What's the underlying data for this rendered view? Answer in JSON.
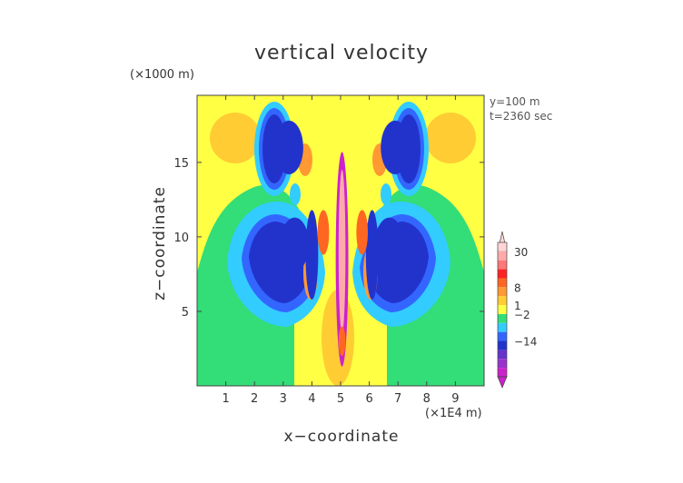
{
  "chart_data": {
    "type": "heatmap",
    "title": "vertical velocity",
    "xlabel": "x−coordinate",
    "ylabel": "z−coordinate",
    "x_unit": "(×1E4 m)",
    "y_unit": "(×1000 m)",
    "annotations": [
      "y=100 m",
      "t=2360 sec"
    ],
    "xlim": [
      0,
      10
    ],
    "ylim": [
      0,
      19.5
    ],
    "x_ticks": [
      "1",
      "2",
      "3",
      "4",
      "5",
      "6",
      "7",
      "8",
      "9"
    ],
    "y_ticks": [
      "5",
      "10",
      "15"
    ],
    "colorbar": {
      "labels": [
        "30",
        "8",
        "1",
        "−2",
        "−14"
      ],
      "levels": [
        {
          "color": "#cc22cc"
        },
        {
          "color": "#9933cc"
        },
        {
          "color": "#6633cc"
        },
        {
          "color": "#2233cc"
        },
        {
          "color": "#3366ff"
        },
        {
          "color": "#33ccff"
        },
        {
          "color": "#33dd77"
        },
        {
          "color": "#ffff44"
        },
        {
          "color": "#ffcc33"
        },
        {
          "color": "#ff9933"
        },
        {
          "color": "#ff6622"
        },
        {
          "color": "#ff2222"
        },
        {
          "color": "#ff7777"
        },
        {
          "color": "#ffaaaa"
        },
        {
          "color": "#ffd5d5"
        }
      ]
    },
    "regions": [
      {
        "type": "cell",
        "x": 4.55,
        "y": 8.5,
        "rx": 0.22,
        "ry": 7.2,
        "color": "#cc22cc"
      },
      {
        "type": "cell",
        "x": 4.55,
        "y": 9.0,
        "rx": 0.12,
        "ry": 5.5,
        "color": "#ffaaaa"
      },
      {
        "type": "cell",
        "x": 4.55,
        "y": 3.0,
        "rx": 0.12,
        "ry": 1.0,
        "color": "#ff6622"
      },
      {
        "type": "cell",
        "x": 3.5,
        "y": 8.8,
        "rx": 0.22,
        "ry": 3.0,
        "color": "#2233cc"
      },
      {
        "type": "cell",
        "x": 5.6,
        "y": 8.8,
        "rx": 0.22,
        "ry": 3.0,
        "color": "#2233cc"
      },
      {
        "type": "cell",
        "x": 3.9,
        "y": 10.3,
        "rx": 0.2,
        "ry": 1.5,
        "color": "#ff6622"
      },
      {
        "type": "cell",
        "x": 5.25,
        "y": 10.3,
        "rx": 0.2,
        "ry": 1.5,
        "color": "#ff6622"
      },
      {
        "type": "cell",
        "x": 2.9,
        "y": 9.5,
        "rx": 0.5,
        "ry": 1.8,
        "color": "#2233cc"
      },
      {
        "type": "cell",
        "x": 6.2,
        "y": 9.5,
        "rx": 0.5,
        "ry": 1.8,
        "color": "#2233cc"
      },
      {
        "type": "cell",
        "x": 2.7,
        "y": 16.0,
        "rx": 0.5,
        "ry": 1.8,
        "color": "#2233cc"
      },
      {
        "type": "cell",
        "x": 6.4,
        "y": 16.0,
        "rx": 0.5,
        "ry": 1.8,
        "color": "#2233cc"
      }
    ]
  }
}
